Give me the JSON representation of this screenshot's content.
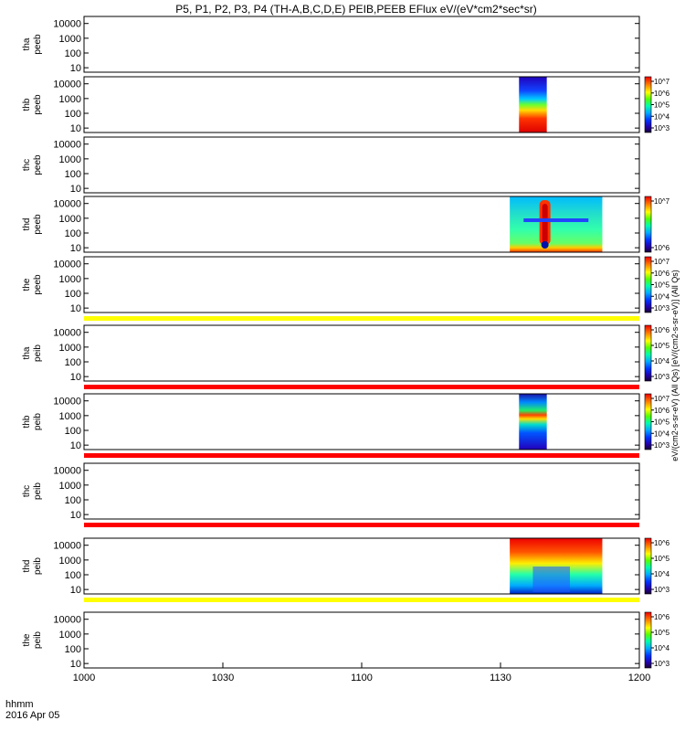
{
  "title": "P5, P1, P2, P3, P4 (TH-A,B,C,D,E) PEIB,PEEB EFlux eV/(eV*cm2*sec*sr)",
  "colors": {
    "quality_flag_yellow": "#ffff00",
    "quality_flag_red": "#ff0000",
    "axis": "#000000"
  },
  "chart_data": {
    "type": "heatmap",
    "x_axis": {
      "label_line1": "hhmm",
      "label_line2": "2016 Apr 05",
      "ticks": [
        "1000",
        "1030",
        "1100",
        "1130",
        "1200"
      ],
      "tick_minutes": [
        600,
        630,
        660,
        690,
        720
      ],
      "range": [
        600,
        720
      ]
    },
    "y_axis": {
      "scale": "log",
      "range": [
        5,
        30000
      ],
      "ticks": [
        10,
        100,
        1000,
        10000
      ],
      "tick_labels": [
        "10",
        "100",
        "1000",
        "10000"
      ]
    },
    "panels": [
      {
        "probe": "tha",
        "instrument": "peeb",
        "data": []
      },
      {
        "probe": "thb",
        "instrument": "peeb",
        "data": [
          {
            "t_start": 694,
            "t_end": 700,
            "style": "electron_b"
          }
        ],
        "colorbar": {
          "tick_labels": [
            "10^3",
            "10^4",
            "10^5",
            "10^6",
            "10^7"
          ],
          "label": "eV/(cm2-s-sr-eV)"
        }
      },
      {
        "probe": "thc",
        "instrument": "peeb",
        "data": []
      },
      {
        "probe": "thd",
        "instrument": "peeb",
        "data": [
          {
            "t_start": 692,
            "t_end": 712,
            "style": "electron_d"
          }
        ],
        "colorbar": {
          "tick_labels": [
            "10^6",
            "10^7"
          ],
          "label": "eV/(cm2-s-sr-eV)"
        }
      },
      {
        "probe": "the",
        "instrument": "peeb",
        "data": [],
        "colorbar": {
          "tick_labels": [
            "10^3",
            "10^4",
            "10^5",
            "10^6",
            "10^7"
          ],
          "label": "eV/(cm2-s-sr-eV)"
        }
      },
      {
        "probe": "tha",
        "instrument": "peib",
        "data": [],
        "colorbar": {
          "tick_labels": [
            "10^3",
            "10^4",
            "10^5",
            "10^6"
          ],
          "label": "eV/(cm2-s-sr-eV)"
        }
      },
      {
        "probe": "thb",
        "instrument": "peib",
        "data": [
          {
            "t_start": 694,
            "t_end": 700,
            "style": "ion_b"
          }
        ],
        "colorbar": {
          "tick_labels": [
            "10^3",
            "10^4",
            "10^5",
            "10^6",
            "10^7"
          ],
          "label": "eV/(cm2-s-sr-eV)"
        }
      },
      {
        "probe": "thc",
        "instrument": "peib",
        "data": []
      },
      {
        "probe": "thd",
        "instrument": "peib",
        "data": [
          {
            "t_start": 692,
            "t_end": 712,
            "style": "ion_d"
          }
        ],
        "colorbar": {
          "tick_labels": [
            "10^3",
            "10^4",
            "10^5",
            "10^6"
          ],
          "label": "eV/(cm2-s-sr-eV)"
        }
      },
      {
        "probe": "the",
        "instrument": "peib",
        "data": [],
        "colorbar": {
          "tick_labels": [
            "10^3",
            "10^4",
            "10^5",
            "10^6"
          ],
          "label": "eV/(cm2-s-sr-eV)"
        }
      }
    ],
    "flag_bars": [
      {
        "after_panel": 4,
        "color": "yellow"
      },
      {
        "after_panel": 5,
        "color": "red"
      },
      {
        "after_panel": 6,
        "color": "red"
      },
      {
        "after_panel": 7,
        "color": "red"
      },
      {
        "after_panel": 8,
        "color": "yellow"
      }
    ],
    "colorbar_side_label": "eV/(cm2-s-sr-eV)  (All Qs)  [eV/(cm2-s-sr-eV)] (All Qs)"
  }
}
